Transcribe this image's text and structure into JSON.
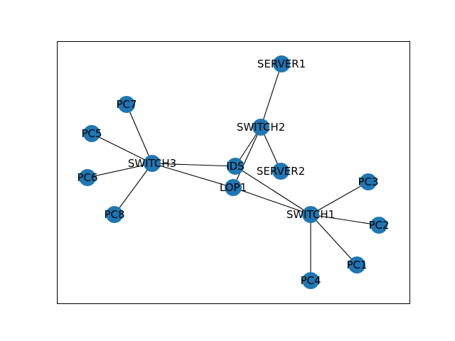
{
  "graph": {
    "colors": {
      "node": "#1f77b4",
      "edge": "#000000",
      "frame": "#000000",
      "label": "#000000"
    },
    "nodes": [
      {
        "id": "SERVER1",
        "label": "SERVER1"
      },
      {
        "id": "SWITCH2",
        "label": "SWITCH2"
      },
      {
        "id": "SERVER2",
        "label": "SERVER2"
      },
      {
        "id": "IDS",
        "label": "IDS"
      },
      {
        "id": "LOP1",
        "label": "LOP1"
      },
      {
        "id": "SWITCH3",
        "label": "SWITCH3"
      },
      {
        "id": "PC7",
        "label": "PC7"
      },
      {
        "id": "PC5",
        "label": "PC5"
      },
      {
        "id": "PC6",
        "label": "PC6"
      },
      {
        "id": "PC8",
        "label": "PC8"
      },
      {
        "id": "SWITCH1",
        "label": "SWITCH1"
      },
      {
        "id": "PC3",
        "label": "PC3"
      },
      {
        "id": "PC2",
        "label": "PC2"
      },
      {
        "id": "PC1",
        "label": "PC1"
      },
      {
        "id": "PC4",
        "label": "PC4"
      }
    ],
    "edges": [
      [
        "SERVER1",
        "SWITCH2"
      ],
      [
        "SWITCH2",
        "SERVER2"
      ],
      [
        "SWITCH2",
        "IDS"
      ],
      [
        "SWITCH2",
        "LOP1"
      ],
      [
        "IDS",
        "SWITCH3"
      ],
      [
        "IDS",
        "SWITCH1"
      ],
      [
        "LOP1",
        "SWITCH3"
      ],
      [
        "LOP1",
        "SWITCH1"
      ],
      [
        "SWITCH3",
        "PC7"
      ],
      [
        "SWITCH3",
        "PC5"
      ],
      [
        "SWITCH3",
        "PC6"
      ],
      [
        "SWITCH3",
        "PC8"
      ],
      [
        "SWITCH1",
        "PC3"
      ],
      [
        "SWITCH1",
        "PC2"
      ],
      [
        "SWITCH1",
        "PC1"
      ],
      [
        "SWITCH1",
        "PC4"
      ]
    ]
  }
}
